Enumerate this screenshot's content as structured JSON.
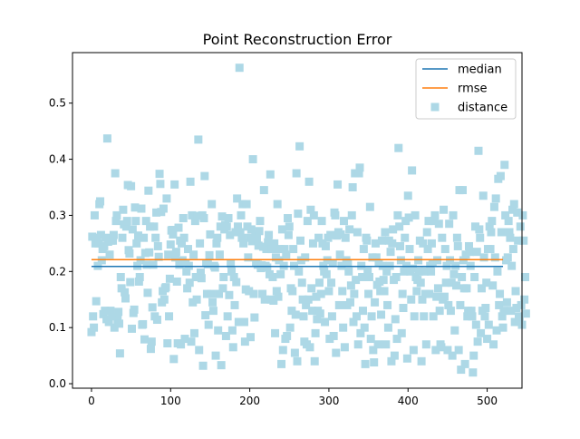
{
  "chart_data": {
    "type": "scatter",
    "title": "Point Reconstruction Error",
    "xlabel": "",
    "ylabel": "",
    "xlim": [
      -24,
      544
    ],
    "ylim": [
      -0.008,
      0.59
    ],
    "xticks": [
      0,
      100,
      200,
      300,
      400,
      500
    ],
    "yticks": [
      0.0,
      0.1,
      0.2,
      0.3,
      0.4,
      0.5
    ],
    "xtick_labels": [
      "0",
      "100",
      "200",
      "300",
      "400",
      "500"
    ],
    "ytick_labels": [
      "0.0",
      "0.1",
      "0.2",
      "0.3",
      "0.4",
      "0.5"
    ],
    "grid": false,
    "legend_position": "top-right",
    "colors": {
      "median": "#1f77b4",
      "rmse": "#ff7f0e",
      "distance": "#add8e6"
    },
    "lines": [
      {
        "name": "median",
        "x": [
          0,
          520
        ],
        "y": [
          0.209,
          0.209
        ]
      },
      {
        "name": "rmse",
        "x": [
          0,
          520
        ],
        "y": [
          0.221,
          0.221
        ]
      }
    ],
    "scatter": {
      "name": "distance",
      "x_start": 0,
      "x_step": 1.0,
      "y": [
        0.092,
        0.262,
        0.12,
        0.1,
        0.3,
        0.25,
        0.147,
        0.26,
        0.21,
        0.25,
        0.32,
        0.325,
        0.265,
        0.22,
        0.24,
        0.124,
        0.245,
        0.13,
        0.26,
        0.115,
        0.437,
        0.253,
        0.11,
        0.23,
        0.13,
        0.255,
        0.12,
        0.255,
        0.265,
        0.1,
        0.375,
        0.29,
        0.3,
        0.114,
        0.128,
        0.107,
        0.054,
        0.19,
        0.17,
        0.26,
        0.31,
        0.284,
        0.163,
        0.152,
        0.28,
        0.29,
        0.354,
        0.238,
        0.232,
        0.181,
        0.352,
        0.098,
        0.275,
        0.126,
        0.132,
        0.314,
        0.29,
        0.25,
        0.21,
        0.264,
        0.182,
        0.19,
        0.22,
        0.312,
        0.105,
        0.106,
        0.26,
        0.079,
        0.233,
        0.29,
        0.212,
        0.162,
        0.344,
        0.234,
        0.28,
        0.062,
        0.075,
        0.136,
        0.212,
        0.28,
        0.12,
        0.26,
        0.305,
        0.114,
        0.245,
        0.226,
        0.374,
        0.356,
        0.306,
        0.145,
        0.165,
        0.312,
        0.15,
        0.17,
        0.172,
        0.33,
        0.072,
        0.23,
        0.12,
        0.187,
        0.248,
        0.273,
        0.274,
        0.266,
        0.044,
        0.355,
        0.225,
        0.235,
        0.182,
        0.072,
        0.278,
        0.212,
        0.255,
        0.07,
        0.25,
        0.22,
        0.295,
        0.26,
        0.08,
        0.215,
        0.2,
        0.17,
        0.24,
        0.21,
        0.18,
        0.36,
        0.075,
        0.3,
        0.145,
        0.23,
        0.09,
        0.29,
        0.19,
        0.15,
        0.299,
        0.435,
        0.06,
        0.25,
        0.198,
        0.188,
        0.3,
        0.032,
        0.295,
        0.37,
        0.122,
        0.215,
        0.16,
        0.213,
        0.105,
        0.229,
        0.266,
        0.16,
        0.32,
        0.145,
        0.13,
        0.21,
        0.207,
        0.05,
        0.25,
        0.26,
        0.095,
        0.16,
        0.23,
        0.28,
        0.033,
        0.298,
        0.17,
        0.19,
        0.275,
        0.283,
        0.085,
        0.28,
        0.12,
        0.295,
        0.158,
        0.265,
        0.214,
        0.2,
        0.095,
        0.065,
        0.19,
        0.14,
        0.27,
        0.181,
        0.33,
        0.28,
        0.11,
        0.563,
        0.27,
        0.3,
        0.26,
        0.32,
        0.25,
        0.11,
        0.075,
        0.168,
        0.32,
        0.28,
        0.225,
        0.165,
        0.26,
        0.083,
        0.275,
        0.254,
        0.4,
        0.16,
        0.118,
        0.265,
        0.215,
        0.26,
        0.212,
        0.246,
        0.272,
        0.29,
        0.206,
        0.211,
        0.16,
        0.244,
        0.345,
        0.15,
        0.21,
        0.24,
        0.207,
        0.252,
        0.265,
        0.195,
        0.373,
        0.15,
        0.24,
        0.19,
        0.148,
        0.25,
        0.09,
        0.225,
        0.165,
        0.32,
        0.155,
        0.22,
        0.24,
        0.195,
        0.035,
        0.275,
        0.06,
        0.21,
        0.24,
        0.08,
        0.23,
        0.085,
        0.295,
        0.265,
        0.28,
        0.1,
        0.17,
        0.13,
        0.165,
        0.24,
        0.21,
        0.055,
        0.123,
        0.375,
        0.04,
        0.303,
        0.2,
        0.423,
        0.255,
        0.22,
        0.18,
        0.15,
        0.12,
        0.075,
        0.225,
        0.14,
        0.07,
        0.29,
        0.15,
        0.36,
        0.065,
        0.31,
        0.17,
        0.13,
        0.25,
        0.3,
        0.04,
        0.09,
        0.155,
        0.115,
        0.13,
        0.26,
        0.18,
        0.125,
        0.16,
        0.29,
        0.25,
        0.21,
        0.2,
        0.11,
        0.245,
        0.195,
        0.22,
        0.26,
        0.165,
        0.08,
        0.265,
        0.18,
        0.12,
        0.215,
        0.085,
        0.305,
        0.3,
        0.055,
        0.264,
        0.355,
        0.27,
        0.14,
        0.23,
        0.266,
        0.21,
        0.165,
        0.1,
        0.29,
        0.065,
        0.26,
        0.22,
        0.14,
        0.215,
        0.2,
        0.275,
        0.145,
        0.175,
        0.3,
        0.35,
        0.11,
        0.16,
        0.375,
        0.185,
        0.12,
        0.27,
        0.07,
        0.375,
        0.385,
        0.09,
        0.21,
        0.19,
        0.13,
        0.24,
        0.1,
        0.035,
        0.26,
        0.255,
        0.2,
        0.16,
        0.19,
        0.315,
        0.08,
        0.12,
        0.225,
        0.06,
        0.038,
        0.145,
        0.25,
        0.225,
        0.176,
        0.07,
        0.215,
        0.182,
        0.165,
        0.123,
        0.255,
        0.21,
        0.185,
        0.165,
        0.27,
        0.07,
        0.2,
        0.14,
        0.1,
        0.255,
        0.21,
        0.235,
        0.04,
        0.25,
        0.275,
        0.185,
        0.05,
        0.115,
        0.19,
        0.08,
        0.3,
        0.42,
        0.28,
        0.245,
        0.22,
        0.09,
        0.16,
        0.135,
        0.2,
        0.26,
        0.29,
        0.21,
        0.045,
        0.335,
        0.296,
        0.24,
        0.2,
        0.15,
        0.38,
        0.205,
        0.06,
        0.12,
        0.3,
        0.19,
        0.165,
        0.185,
        0.22,
        0.2,
        0.255,
        0.18,
        0.04,
        0.15,
        0.25,
        0.12,
        0.2,
        0.16,
        0.07,
        0.27,
        0.24,
        0.29,
        0.16,
        0.21,
        0.2,
        0.25,
        0.215,
        0.12,
        0.29,
        0.3,
        0.06,
        0.155,
        0.22,
        0.17,
        0.285,
        0.13,
        0.07,
        0.065,
        0.26,
        0.15,
        0.31,
        0.155,
        0.24,
        0.18,
        0.21,
        0.06,
        0.14,
        0.285,
        0.22,
        0.13,
        0.18,
        0.05,
        0.3,
        0.195,
        0.095,
        0.21,
        0.175,
        0.26,
        0.245,
        0.06,
        0.345,
        0.14,
        0.025,
        0.19,
        0.345,
        0.22,
        0.17,
        0.035,
        0.23,
        0.17,
        0.12,
        0.13,
        0.245,
        0.235,
        0.21,
        0.13,
        0.12,
        0.02,
        0.05,
        0.19,
        0.28,
        0.105,
        0.235,
        0.075,
        0.415,
        0.275,
        0.26,
        0.09,
        0.17,
        0.13,
        0.335,
        0.225,
        0.12,
        0.135,
        0.18,
        0.08,
        0.24,
        0.105,
        0.28,
        0.24,
        0.27,
        0.29,
        0.175,
        0.07,
        0.315,
        0.225,
        0.33,
        0.095,
        0.2,
        0.365,
        0.14,
        0.16,
        0.37,
        0.27,
        0.12,
        0.1,
        0.13,
        0.39,
        0.3,
        0.22,
        0.145,
        0.225,
        0.29,
        0.27,
        0.26,
        0.13,
        0.21,
        0.31,
        0.24,
        0.32,
        0.11,
        0.165,
        0.135,
        0.305,
        0.255,
        0.12,
        0.115,
        0.28,
        0.14,
        0.105,
        0.3,
        0.255,
        0.15,
        0.19,
        0.125
      ]
    }
  }
}
